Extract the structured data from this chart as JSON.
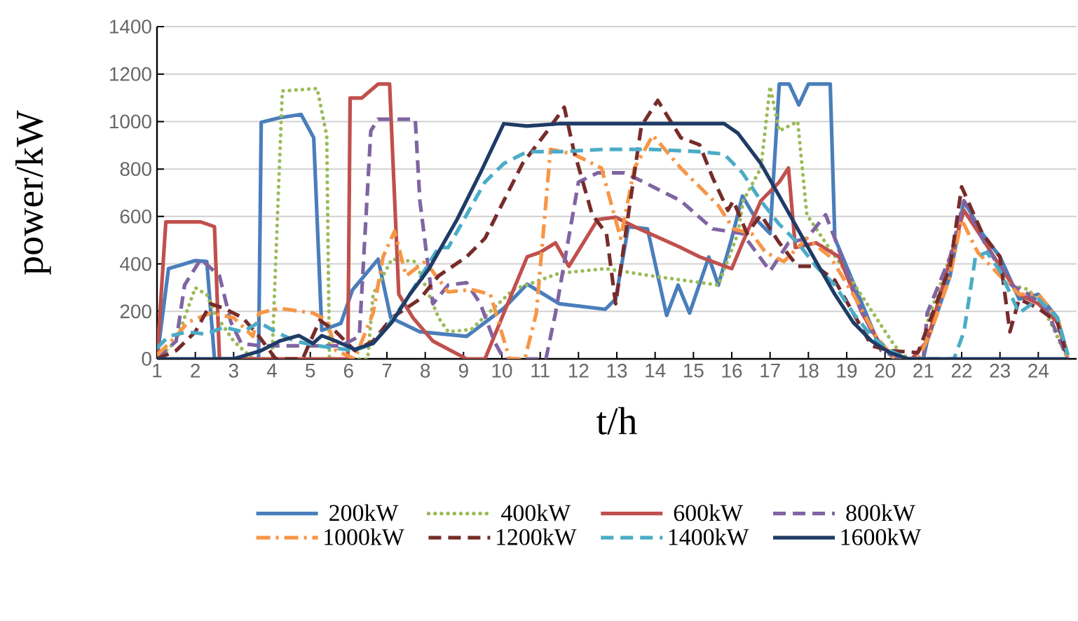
{
  "chart_data": {
    "type": "line",
    "xlabel": "t/h",
    "ylabel": "power/kW",
    "xlim": [
      1,
      25
    ],
    "xticks": [
      1,
      2,
      3,
      4,
      5,
      6,
      7,
      8,
      9,
      10,
      11,
      12,
      13,
      14,
      15,
      16,
      17,
      18,
      19,
      20,
      21,
      22,
      23,
      24
    ],
    "ylim": [
      0,
      1400
    ],
    "yticks": [
      0,
      200,
      400,
      600,
      800,
      1000,
      1200,
      1400
    ],
    "grid": "y",
    "legend": "bottom",
    "marker": "none",
    "series": [
      {
        "name": "200kW",
        "color": "#4a7ebb",
        "line_style": "solid",
        "x": [
          1,
          1.3,
          2.0,
          2.3,
          2.5,
          3.65,
          3.72,
          4.2,
          4.76,
          5.09,
          5.3,
          5.8,
          6.1,
          6.77,
          7.1,
          7.86,
          9.08,
          10.05,
          10.66,
          11.5,
          12.7,
          12.97,
          13.3,
          13.8,
          14.3,
          14.6,
          14.9,
          15.4,
          15.65,
          16.0,
          16.28,
          16.64,
          17.0,
          17.24,
          17.5,
          17.75,
          18.0,
          18.57,
          18.69,
          19.3,
          19.8,
          20.25,
          21.0,
          21.1,
          21.7,
          22.06,
          22.54,
          23.0,
          23.5,
          24.0,
          24.5,
          24.77
        ],
        "values": [
          0,
          380,
          414,
          410,
          0,
          0,
          997,
          1016,
          1030,
          932,
          120,
          150,
          290,
          420,
          173,
          114,
          95,
          213,
          315,
          232,
          209,
          252,
          557,
          548,
          183,
          311,
          193,
          429,
          311,
          508,
          686,
          587,
          528,
          1158,
          1158,
          1070,
          1158,
          1158,
          508,
          272,
          75,
          0,
          0,
          75,
          350,
          666,
          528,
          430,
          252,
          272,
          173,
          16
        ]
      },
      {
        "name": "400kW",
        "color": "#9bbb59",
        "line_style": "dotted",
        "x": [
          1,
          1.5,
          2.0,
          2.3,
          2.5,
          3.0,
          3.5,
          4.0,
          4.27,
          5.18,
          5.43,
          5.5,
          6.5,
          6.64,
          7.13,
          7.74,
          8.35,
          8.6,
          9.2,
          10.3,
          11.5,
          12.7,
          13.9,
          15.2,
          15.65,
          16.16,
          16.3,
          16.76,
          17.0,
          17.24,
          17.72,
          17.96,
          18.45,
          19.05,
          19.77,
          20.25,
          20.6,
          21.0,
          21.1,
          21.7,
          22.06,
          22.54,
          23.3,
          23.75,
          24.2,
          24.77
        ],
        "values": [
          0,
          75,
          300,
          270,
          193,
          75,
          0,
          0,
          1129,
          1139,
          940,
          0,
          0,
          272,
          420,
          410,
          173,
          114,
          124,
          292,
          361,
          380,
          350,
          321,
          311,
          528,
          666,
          804,
          1148,
          961,
          1000,
          607,
          489,
          350,
          173,
          55,
          0,
          0,
          154,
          430,
          626,
          508,
          311,
          292,
          193,
          0
        ]
      },
      {
        "name": "600kW",
        "color": "#c0504d",
        "line_style": "solid",
        "x": [
          1,
          1.23,
          2.14,
          2.5,
          2.63,
          5.98,
          6.04,
          6.34,
          6.77,
          7.07,
          7.31,
          7.68,
          8.2,
          9.08,
          9.56,
          10.05,
          10.66,
          11.0,
          11.4,
          11.75,
          12.5,
          12.97,
          13.58,
          14.67,
          15.16,
          16.0,
          16.28,
          16.76,
          17.24,
          17.48,
          17.66,
          18.2,
          18.8,
          19.4,
          19.9,
          20.4,
          20.7,
          21.1,
          21.58,
          22.06,
          22.54,
          23.0,
          23.5,
          24.0,
          24.5,
          24.77
        ],
        "values": [
          0,
          577,
          577,
          557,
          0,
          0,
          1099,
          1099,
          1158,
          1158,
          272,
          173,
          75,
          0,
          0,
          193,
          430,
          449,
          489,
          390,
          587,
          597,
          548,
          469,
          430,
          380,
          489,
          666,
          745,
          804,
          469,
          489,
          430,
          193,
          55,
          0,
          0,
          75,
          350,
          626,
          508,
          390,
          272,
          232,
          154,
          0
        ]
      },
      {
        "name": "800kW",
        "color": "#8064a2",
        "line_style": "dashed",
        "x": [
          1,
          1.5,
          1.72,
          2.14,
          2.63,
          2.93,
          3.2,
          3.7,
          4.45,
          5.2,
          5.8,
          6.28,
          6.58,
          6.77,
          7.74,
          7.86,
          8.2,
          8.6,
          9.08,
          9.44,
          9.8,
          10.05,
          11.15,
          11.4,
          12.0,
          12.5,
          13.2,
          13.7,
          14.67,
          15.5,
          16.28,
          17.0,
          17.48,
          17.96,
          18.45,
          18.69,
          19.3,
          19.9,
          20.4,
          21.0,
          21.1,
          21.7,
          22.06,
          22.66,
          23.3,
          23.75,
          24.2,
          24.77
        ],
        "values": [
          0,
          75,
          311,
          420,
          350,
          154,
          65,
          55,
          55,
          55,
          55,
          95,
          961,
          1010,
          1010,
          666,
          232,
          311,
          321,
          232,
          75,
          0,
          0,
          193,
          745,
          784,
          784,
          745,
          666,
          548,
          528,
          370,
          489,
          508,
          607,
          508,
          232,
          35,
          0,
          0,
          193,
          430,
          666,
          469,
          311,
          272,
          213,
          0
        ]
      },
      {
        "name": "1000kW",
        "color": "#f79646",
        "line_style": "dashdot",
        "x": [
          1,
          1.5,
          1.8,
          2.4,
          3.0,
          3.5,
          3.66,
          4.2,
          5.07,
          5.43,
          5.67,
          6.16,
          6.64,
          6.9,
          7.2,
          7.5,
          8.0,
          8.6,
          9.2,
          9.7,
          10.2,
          10.6,
          10.9,
          11.27,
          11.87,
          12.6,
          13.1,
          13.46,
          13.94,
          14.67,
          15.16,
          15.65,
          16.04,
          16.52,
          16.88,
          17.36,
          17.96,
          18.57,
          19.17,
          19.77,
          20.25,
          20.86,
          21.2,
          21.7,
          22.0,
          22.42,
          23.0,
          23.5,
          24.0,
          24.5,
          24.77
        ],
        "values": [
          16,
          95,
          154,
          193,
          173,
          95,
          193,
          213,
          193,
          163,
          35,
          0,
          193,
          430,
          538,
          350,
          410,
          282,
          292,
          272,
          0,
          0,
          193,
          883,
          863,
          804,
          508,
          804,
          942,
          804,
          725,
          646,
          548,
          528,
          449,
          410,
          508,
          430,
          272,
          95,
          0,
          0,
          114,
          350,
          587,
          449,
          350,
          272,
          272,
          173,
          0
        ]
      },
      {
        "name": "1200kW",
        "color": "#772c2a",
        "line_style": "dashed",
        "x": [
          1,
          1.5,
          2.0,
          2.4,
          2.75,
          3.24,
          3.66,
          4.1,
          4.8,
          5.25,
          5.67,
          6.16,
          6.64,
          7.13,
          7.86,
          8.35,
          9.08,
          9.56,
          10.05,
          10.54,
          11.15,
          11.63,
          11.87,
          12.36,
          12.73,
          12.97,
          13.3,
          13.64,
          14.07,
          14.67,
          15.16,
          15.5,
          15.9,
          16.04,
          16.4,
          16.76,
          17.24,
          17.72,
          18.2,
          18.69,
          19.17,
          19.65,
          20.13,
          20.86,
          21.2,
          21.7,
          22.0,
          22.54,
          23.0,
          23.26,
          23.5,
          24.0,
          24.5,
          24.77
        ],
        "values": [
          0,
          35,
          114,
          232,
          213,
          173,
          95,
          0,
          0,
          163,
          114,
          35,
          75,
          173,
          252,
          350,
          430,
          508,
          666,
          823,
          952,
          1060,
          883,
          607,
          528,
          232,
          607,
          981,
          1089,
          932,
          902,
          764,
          626,
          666,
          528,
          607,
          489,
          390,
          390,
          331,
          193,
          55,
          35,
          26,
          173,
          390,
          725,
          528,
          430,
          114,
          252,
          213,
          154,
          0
        ]
      },
      {
        "name": "1400kW",
        "color": "#4bacc6",
        "line_style": "dashed",
        "x": [
          1,
          1.3,
          1.8,
          2.27,
          2.75,
          3.24,
          3.66,
          4.1,
          4.6,
          5.2,
          5.67,
          6.16,
          6.64,
          7.0,
          7.6,
          8.35,
          8.6,
          9.08,
          9.56,
          10.05,
          10.66,
          11.5,
          12.7,
          13.9,
          15.16,
          15.8,
          16.28,
          16.76,
          17.24,
          17.72,
          18.2,
          18.69,
          19.17,
          19.65,
          20.13,
          20.6,
          21.8,
          22.06,
          22.36,
          22.66,
          23.0,
          23.5,
          24.0,
          24.5,
          24.77
        ],
        "values": [
          45,
          95,
          114,
          104,
          134,
          114,
          154,
          114,
          75,
          55,
          45,
          35,
          65,
          134,
          272,
          469,
          469,
          607,
          745,
          823,
          873,
          873,
          883,
          883,
          873,
          863,
          784,
          666,
          567,
          489,
          390,
          311,
          193,
          95,
          35,
          0,
          0,
          114,
          430,
          449,
          370,
          193,
          252,
          173,
          16
        ]
      },
      {
        "name": "1600kW",
        "color": "#1f3b66",
        "line_style": "solid",
        "x": [
          1,
          3.0,
          3.72,
          4.2,
          4.7,
          5.07,
          5.3,
          5.67,
          6.16,
          6.64,
          7.13,
          7.6,
          8.1,
          8.83,
          9.44,
          10.05,
          10.66,
          11.5,
          12.7,
          13.9,
          15.16,
          15.8,
          16.16,
          16.76,
          17.24,
          17.72,
          18.2,
          18.69,
          19.17,
          19.65,
          20.13,
          20.6,
          24.77
        ],
        "values": [
          0,
          0,
          35,
          75,
          98,
          65,
          98,
          75,
          40,
          65,
          154,
          272,
          380,
          587,
          784,
          991,
          981,
          991,
          991,
          991,
          991,
          991,
          951,
          823,
          686,
          548,
          410,
          272,
          154,
          75,
          26,
          0,
          0
        ]
      }
    ]
  }
}
